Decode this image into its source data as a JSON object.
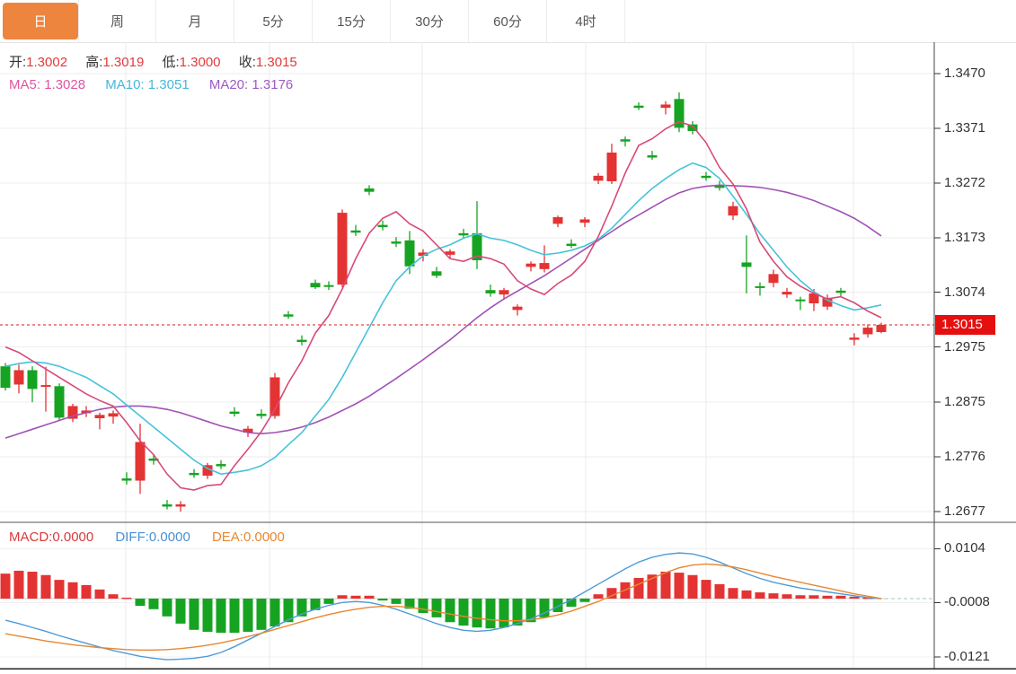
{
  "header": {
    "tabs": [
      {
        "key": "day",
        "label": "日",
        "selected": true
      },
      {
        "key": "week",
        "label": "周",
        "selected": false
      },
      {
        "key": "month",
        "label": "月",
        "selected": false
      },
      {
        "key": "5min",
        "label": "5分",
        "selected": false
      },
      {
        "key": "15min",
        "label": "15分",
        "selected": false
      },
      {
        "key": "30min",
        "label": "30分",
        "selected": false
      },
      {
        "key": "60min",
        "label": "60分",
        "selected": false
      },
      {
        "key": "4hour",
        "label": "4时",
        "selected": false
      }
    ]
  },
  "legend": {
    "open_label": "开:",
    "open": "1.3002",
    "high_label": "高:",
    "high": "1.3019",
    "low_label": "低:",
    "low": "1.3000",
    "close_label": "收:",
    "close": "1.3015",
    "ma5_label": "MA5:",
    "ma5": "1.3028",
    "ma10_label": "MA10:",
    "ma10": "1.3051",
    "ma20_label": "MA20:",
    "ma20": "1.3176"
  },
  "macd_legend": {
    "macd_label": "MACD:",
    "macd": "0.0000",
    "diff_label": "DIFF:",
    "diff": "0.0000",
    "dea_label": "DEA:",
    "dea": "0.0000"
  },
  "current_price": "1.3015",
  "colors": {
    "accent_orange": "#ed853e",
    "candle_up_red": "#e43333",
    "candle_down_green": "#17a322",
    "ma5_line": "#d84a78",
    "ma10_line": "#45c3da",
    "ma20_line": "#a052b4",
    "diff_line": "#4f9bd8",
    "dea_line": "#e8872f",
    "badge_red": "#e50f0f",
    "dotted_price_line": "#e04848",
    "grid": "#ededed",
    "axis": "#444444"
  },
  "chart_data": {
    "type": "candlestick",
    "title": "",
    "legend_position": "top-left",
    "grid": true,
    "price_axis": {
      "ticks": [
        "1.3470",
        "1.3371",
        "1.3272",
        "1.3173",
        "1.3074",
        "1.2975",
        "1.2875",
        "1.2776",
        "1.2677"
      ],
      "max": 1.347,
      "min": 1.2677
    },
    "macd_axis": {
      "ticks": [
        "0.0104",
        "-0.0008",
        "-0.0121"
      ]
    },
    "current_price_value": 1.3015,
    "candles_ohlc": [
      [
        1.294,
        1.2946,
        1.2896,
        1.2901
      ],
      [
        1.2907,
        1.2943,
        1.2891,
        1.2933
      ],
      [
        1.2933,
        1.294,
        1.2875,
        1.2899
      ],
      [
        1.2903,
        1.2939,
        1.2858,
        1.2906
      ],
      [
        1.2904,
        1.2909,
        1.2842,
        1.2847
      ],
      [
        1.2845,
        1.2872,
        1.2839,
        1.2868
      ],
      [
        1.2855,
        1.2868,
        1.2848,
        1.286
      ],
      [
        1.2846,
        1.2856,
        1.2826,
        1.2852
      ],
      [
        1.2849,
        1.286,
        1.2836,
        1.2855
      ],
      [
        1.2737,
        1.2748,
        1.2726,
        1.2733
      ],
      [
        1.2733,
        1.2836,
        1.2709,
        1.2803
      ],
      [
        1.2773,
        1.2781,
        1.2762,
        1.2769
      ],
      [
        1.269,
        1.2698,
        1.2681,
        1.2686
      ],
      [
        1.2686,
        1.2696,
        1.2677,
        1.269
      ],
      [
        1.2747,
        1.2754,
        1.2738,
        1.2743
      ],
      [
        1.2742,
        1.2765,
        1.2736,
        1.2761
      ],
      [
        1.2763,
        1.277,
        1.2754,
        1.2759
      ],
      [
        1.2858,
        1.2866,
        1.2849,
        1.2854
      ],
      [
        1.282,
        1.2832,
        1.2812,
        1.2827
      ],
      [
        1.2854,
        1.2862,
        1.2845,
        1.285
      ],
      [
        1.285,
        1.2928,
        1.2845,
        1.292
      ],
      [
        1.3034,
        1.304,
        1.3026,
        1.303
      ],
      [
        1.2988,
        1.2996,
        1.2978,
        1.2984
      ],
      [
        1.3091,
        1.3097,
        1.308,
        1.3083
      ],
      [
        1.3087,
        1.3094,
        1.3078,
        1.3084
      ],
      [
        1.3088,
        1.3224,
        1.3083,
        1.3218
      ],
      [
        1.3186,
        1.3196,
        1.3176,
        1.3182
      ],
      [
        1.3262,
        1.3268,
        1.325,
        1.3256
      ],
      [
        1.3196,
        1.3204,
        1.3186,
        1.3192
      ],
      [
        1.3166,
        1.3174,
        1.3156,
        1.3162
      ],
      [
        1.3168,
        1.3185,
        1.3107,
        1.3121
      ],
      [
        1.314,
        1.3152,
        1.313,
        1.3146
      ],
      [
        1.3112,
        1.312,
        1.31,
        1.3104
      ],
      [
        1.3142,
        1.3152,
        1.3134,
        1.3148
      ],
      [
        1.3181,
        1.3189,
        1.3172,
        1.3177
      ],
      [
        1.3181,
        1.3239,
        1.3116,
        1.3132
      ],
      [
        1.3078,
        1.3088,
        1.3066,
        1.3072
      ],
      [
        1.307,
        1.3082,
        1.3062,
        1.3078
      ],
      [
        1.3042,
        1.3052,
        1.3032,
        1.3048
      ],
      [
        1.312,
        1.313,
        1.3112,
        1.3126
      ],
      [
        1.3116,
        1.3159,
        1.311,
        1.3127
      ],
      [
        1.3198,
        1.3213,
        1.3192,
        1.321
      ],
      [
        1.3162,
        1.317,
        1.3154,
        1.3158
      ],
      [
        1.32,
        1.321,
        1.3192,
        1.3206
      ],
      [
        1.3276,
        1.329,
        1.327,
        1.3285
      ],
      [
        1.3275,
        1.3343,
        1.327,
        1.3327
      ],
      [
        1.3351,
        1.3356,
        1.3338,
        1.3347
      ],
      [
        1.3412,
        1.3418,
        1.3404,
        1.3408
      ],
      [
        1.3322,
        1.333,
        1.3314,
        1.3318
      ],
      [
        1.3408,
        1.342,
        1.3396,
        1.3414
      ],
      [
        1.3424,
        1.3436,
        1.3364,
        1.3372
      ],
      [
        1.3378,
        1.3384,
        1.336,
        1.3366
      ],
      [
        1.3285,
        1.3292,
        1.3276,
        1.3281
      ],
      [
        1.3268,
        1.3276,
        1.3258,
        1.3263
      ],
      [
        1.3213,
        1.3238,
        1.3205,
        1.323
      ],
      [
        1.3128,
        1.3177,
        1.3072,
        1.312
      ],
      [
        1.3085,
        1.3092,
        1.3068,
        1.3083
      ],
      [
        1.3091,
        1.3115,
        1.3083,
        1.3107
      ],
      [
        1.307,
        1.3082,
        1.3064,
        1.3075
      ],
      [
        1.3061,
        1.3066,
        1.3042,
        1.3058
      ],
      [
        1.3054,
        1.308,
        1.304,
        1.3072
      ],
      [
        1.3048,
        1.307,
        1.3042,
        1.3064
      ],
      [
        1.3077,
        1.3082,
        1.3066,
        1.3073
      ],
      [
        1.2988,
        1.3,
        1.2978,
        1.2992
      ],
      [
        1.2998,
        1.3016,
        1.2992,
        1.301
      ],
      [
        1.3002,
        1.3019,
        1.3,
        1.3015
      ]
    ],
    "ma5": [
      1.2975,
      1.2965,
      1.295,
      1.2935,
      1.292,
      1.2905,
      1.289,
      1.2878,
      1.2868,
      1.2838,
      1.2805,
      1.278,
      1.2745,
      1.272,
      1.2716,
      1.2724,
      1.2726,
      1.276,
      1.279,
      1.2822,
      1.2862,
      1.291,
      1.295,
      1.3,
      1.3032,
      1.308,
      1.3135,
      1.3181,
      1.3208,
      1.322,
      1.3198,
      1.3185,
      1.316,
      1.3135,
      1.313,
      1.314,
      1.3135,
      1.3125,
      1.3095,
      1.308,
      1.307,
      1.309,
      1.3105,
      1.313,
      1.3175,
      1.323,
      1.329,
      1.334,
      1.3352,
      1.337,
      1.3383,
      1.3375,
      1.3345,
      1.33,
      1.327,
      1.3225,
      1.3165,
      1.313,
      1.3102,
      1.3085,
      1.3072,
      1.3062,
      1.3066,
      1.3055,
      1.304,
      1.3028
    ],
    "ma10": [
      1.294,
      1.2945,
      1.2948,
      1.2946,
      1.294,
      1.293,
      1.292,
      1.2905,
      1.289,
      1.287,
      1.285,
      1.283,
      1.281,
      1.279,
      1.277,
      1.2755,
      1.2745,
      1.2748,
      1.2752,
      1.276,
      1.2775,
      1.2798,
      1.282,
      1.285,
      1.288,
      1.292,
      1.2965,
      1.301,
      1.3055,
      1.3095,
      1.312,
      1.314,
      1.3152,
      1.316,
      1.3172,
      1.318,
      1.3172,
      1.3168,
      1.316,
      1.315,
      1.3142,
      1.3145,
      1.315,
      1.3158,
      1.317,
      1.319,
      1.3215,
      1.324,
      1.3262,
      1.328,
      1.3296,
      1.3308,
      1.33,
      1.328,
      1.3248,
      1.3215,
      1.318,
      1.315,
      1.312,
      1.3095,
      1.3075,
      1.306,
      1.305,
      1.3042,
      1.3046,
      1.3051
    ],
    "ma20": [
      1.281,
      1.2818,
      1.2826,
      1.2834,
      1.2842,
      1.285,
      1.2856,
      1.2862,
      1.2866,
      1.2868,
      1.2868,
      1.2866,
      1.2862,
      1.2856,
      1.2848,
      1.284,
      1.2832,
      1.2826,
      1.282,
      1.2818,
      1.282,
      1.2824,
      1.283,
      1.2838,
      1.2848,
      1.286,
      1.2872,
      1.2886,
      1.2902,
      1.2918,
      1.2935,
      1.2952,
      1.297,
      1.2988,
      1.3008,
      1.3028,
      1.3046,
      1.3062,
      1.3076,
      1.309,
      1.3104,
      1.312,
      1.3136,
      1.3152,
      1.3168,
      1.3184,
      1.32,
      1.3214,
      1.3228,
      1.3242,
      1.3254,
      1.3262,
      1.3266,
      1.3268,
      1.3267,
      1.3266,
      1.3264,
      1.326,
      1.3255,
      1.3248,
      1.324,
      1.323,
      1.322,
      1.3208,
      1.3193,
      1.3176
    ],
    "macd": {
      "hist": [
        0.0052,
        0.0058,
        0.0056,
        0.0049,
        0.0039,
        0.0034,
        0.0028,
        0.0019,
        0.0009,
        0.0002,
        -0.0015,
        -0.0022,
        -0.0037,
        -0.0052,
        -0.0065,
        -0.0069,
        -0.0071,
        -0.0071,
        -0.0069,
        -0.0065,
        -0.0058,
        -0.0049,
        -0.0037,
        -0.0024,
        -0.0011,
        0.0007,
        0.0006,
        0.0006,
        -0.0004,
        -0.0011,
        -0.0021,
        -0.003,
        -0.0039,
        -0.0049,
        -0.0056,
        -0.006,
        -0.0062,
        -0.006,
        -0.0056,
        -0.0049,
        -0.0039,
        -0.0028,
        -0.0017,
        -0.0007,
        0.0009,
        0.0022,
        0.0034,
        0.0043,
        0.005,
        0.0056,
        0.0054,
        0.0049,
        0.0039,
        0.003,
        0.0022,
        0.0017,
        0.0013,
        0.0011,
        0.0009,
        0.0007,
        0.0007,
        0.0006,
        0.0006,
        0.0004,
        0.0002,
        0.0
      ],
      "diff": [
        -0.0045,
        -0.0052,
        -0.006,
        -0.0068,
        -0.0077,
        -0.0085,
        -0.0093,
        -0.0101,
        -0.0108,
        -0.0114,
        -0.012,
        -0.0124,
        -0.0127,
        -0.0126,
        -0.0124,
        -0.012,
        -0.0112,
        -0.01,
        -0.0086,
        -0.0072,
        -0.0058,
        -0.0044,
        -0.0032,
        -0.0022,
        -0.0014,
        -0.0008,
        -0.0006,
        -0.0008,
        -0.0014,
        -0.0022,
        -0.0032,
        -0.0042,
        -0.0052,
        -0.006,
        -0.0066,
        -0.0068,
        -0.0066,
        -0.006,
        -0.0052,
        -0.0042,
        -0.003,
        -0.0016,
        -0.0002,
        0.0014,
        0.003,
        0.0046,
        0.0062,
        0.0076,
        0.0086,
        0.0092,
        0.0095,
        0.0093,
        0.0086,
        0.0076,
        0.0064,
        0.0052,
        0.0042,
        0.0034,
        0.0028,
        0.0022,
        0.0018,
        0.0014,
        0.001,
        0.0006,
        0.0002,
        0.0
      ],
      "dea": [
        -0.0073,
        -0.0078,
        -0.0083,
        -0.0088,
        -0.0092,
        -0.0096,
        -0.0099,
        -0.0102,
        -0.0104,
        -0.0106,
        -0.0107,
        -0.0107,
        -0.0106,
        -0.0104,
        -0.0101,
        -0.0097,
        -0.0092,
        -0.0086,
        -0.0079,
        -0.0072,
        -0.0064,
        -0.0056,
        -0.0048,
        -0.004,
        -0.0033,
        -0.0027,
        -0.0022,
        -0.0018,
        -0.0016,
        -0.0016,
        -0.0018,
        -0.0022,
        -0.0027,
        -0.0032,
        -0.0037,
        -0.0041,
        -0.0044,
        -0.0046,
        -0.0046,
        -0.0044,
        -0.004,
        -0.0034,
        -0.0026,
        -0.0016,
        -0.0006,
        0.0006,
        0.0018,
        0.003,
        0.0042,
        0.0054,
        0.0064,
        0.007,
        0.0072,
        0.007,
        0.0066,
        0.006,
        0.0053,
        0.0046,
        0.004,
        0.0034,
        0.0028,
        0.0022,
        0.0016,
        0.001,
        0.0005,
        0.0
      ]
    }
  }
}
